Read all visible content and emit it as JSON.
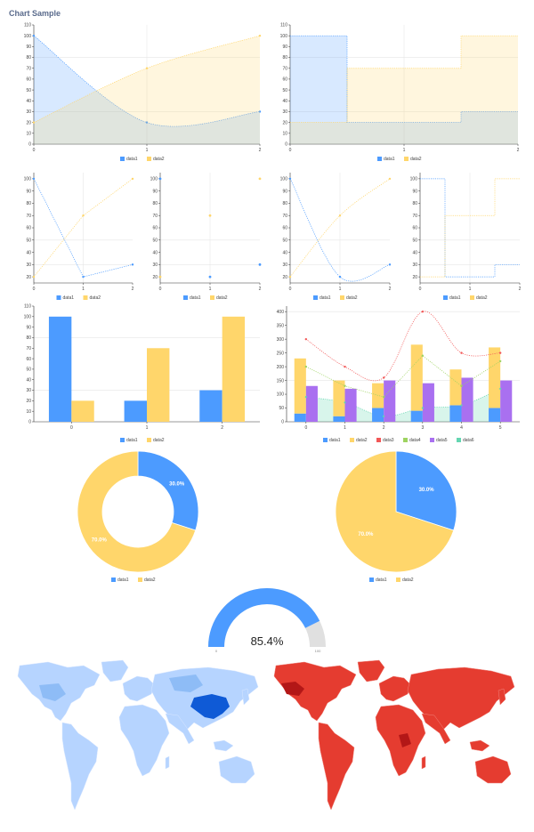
{
  "page": {
    "title": "Chart Sample"
  },
  "colors": {
    "data1": "#4c9bff",
    "data2": "#ffd66b",
    "data3": "#f25757",
    "data4": "#9ed361",
    "data5": "#a970f0",
    "data6": "#64d6b1",
    "map_blue_light": "#b6d4ff",
    "map_blue_mid": "#8ebcf6",
    "map_blue_dark": "#0f5ad6",
    "map_red": "#e53c30",
    "map_red_dark": "#b31717"
  },
  "chart_data": [
    {
      "id": "area-spline",
      "type": "area",
      "x": [
        0,
        1,
        2
      ],
      "series": [
        {
          "name": "data1",
          "values": [
            100,
            20,
            30
          ],
          "smooth": true
        },
        {
          "name": "data2",
          "values": [
            20,
            70,
            100
          ],
          "smooth": true
        }
      ],
      "ylim": [
        0,
        110
      ],
      "yticks": [
        0,
        10,
        20,
        30,
        40,
        50,
        60,
        70,
        80,
        90,
        100,
        110
      ],
      "xticks": [
        "0",
        "1",
        "2"
      ],
      "grid": {
        "y_lines": [
          30,
          80
        ],
        "x_lines": [
          1
        ]
      },
      "legend": "bottom"
    },
    {
      "id": "area-step",
      "type": "area",
      "x": [
        0,
        1,
        2
      ],
      "series": [
        {
          "name": "data1",
          "values": [
            100,
            20,
            30
          ],
          "step": true
        },
        {
          "name": "data2",
          "values": [
            20,
            70,
            100
          ],
          "step": true
        }
      ],
      "ylim": [
        0,
        110
      ],
      "yticks": [
        0,
        10,
        20,
        30,
        40,
        50,
        60,
        70,
        80,
        90,
        100,
        110
      ],
      "xticks": [
        "0",
        "1",
        "2"
      ],
      "grid": {
        "y_lines": [
          30,
          80
        ],
        "x_lines": [
          1
        ]
      },
      "legend": "bottom"
    },
    {
      "id": "line",
      "type": "line",
      "x": [
        0,
        1,
        2
      ],
      "series": [
        {
          "name": "data1",
          "values": [
            100,
            20,
            30
          ]
        },
        {
          "name": "data2",
          "values": [
            20,
            70,
            100
          ]
        }
      ],
      "ylim": [
        15,
        105
      ],
      "yticks": [
        20,
        30,
        40,
        50,
        60,
        70,
        80,
        90,
        100
      ],
      "xticks": [
        "0",
        "1",
        "2"
      ],
      "grid": {
        "y_lines": [
          30,
          50
        ],
        "x_lines": [
          1
        ]
      },
      "legend": "bottom"
    },
    {
      "id": "scatter",
      "type": "scatter",
      "x": [
        0,
        1,
        2
      ],
      "series": [
        {
          "name": "data1",
          "values": [
            100,
            20,
            30
          ]
        },
        {
          "name": "data2",
          "values": [
            20,
            70,
            100
          ]
        }
      ],
      "ylim": [
        15,
        105
      ],
      "yticks": [
        20,
        30,
        40,
        50,
        60,
        70,
        80,
        90,
        100
      ],
      "xticks": [
        "0",
        "1",
        "2"
      ],
      "grid": {
        "y_lines": [
          30,
          50
        ],
        "x_lines": [
          1
        ]
      },
      "legend": "bottom"
    },
    {
      "id": "spline",
      "type": "line",
      "x": [
        0,
        1,
        2
      ],
      "series": [
        {
          "name": "data1",
          "values": [
            100,
            20,
            30
          ],
          "smooth": true
        },
        {
          "name": "data2",
          "values": [
            20,
            70,
            100
          ],
          "smooth": true
        }
      ],
      "ylim": [
        15,
        105
      ],
      "yticks": [
        20,
        30,
        40,
        50,
        60,
        70,
        80,
        90,
        100
      ],
      "xticks": [
        "0",
        "1",
        "2"
      ],
      "grid": {
        "y_lines": [
          30,
          50
        ],
        "x_lines": [
          1
        ]
      },
      "legend": "bottom"
    },
    {
      "id": "step",
      "type": "line",
      "x": [
        0,
        1,
        2
      ],
      "series": [
        {
          "name": "data1",
          "values": [
            100,
            20,
            30
          ],
          "step": true
        },
        {
          "name": "data2",
          "values": [
            20,
            70,
            100
          ],
          "step": true
        }
      ],
      "ylim": [
        15,
        105
      ],
      "yticks": [
        20,
        30,
        40,
        50,
        60,
        70,
        80,
        90,
        100
      ],
      "xticks": [
        "0",
        "1",
        "2"
      ],
      "grid": {
        "y_lines": [
          30,
          50
        ],
        "x_lines": [
          1
        ]
      },
      "legend": "bottom"
    },
    {
      "id": "bar",
      "type": "bar",
      "categories": [
        "0",
        "1",
        "2"
      ],
      "series": [
        {
          "name": "data1",
          "values": [
            100,
            20,
            30
          ]
        },
        {
          "name": "data2",
          "values": [
            20,
            70,
            100
          ]
        }
      ],
      "ylim": [
        0,
        110
      ],
      "yticks": [
        0,
        10,
        20,
        30,
        40,
        50,
        60,
        70,
        80,
        90,
        100,
        110
      ],
      "grid": {
        "y_lines": [
          30,
          80
        ]
      },
      "legend": "bottom"
    },
    {
      "id": "combination",
      "type": "bar",
      "categories": [
        "0",
        "1",
        "2",
        "3",
        "4",
        "5"
      ],
      "series": [
        {
          "name": "data1",
          "kind": "bar",
          "stack": "a",
          "values": [
            30,
            20,
            50,
            40,
            60,
            50
          ]
        },
        {
          "name": "data2",
          "kind": "bar",
          "stack": "a",
          "values": [
            200,
            130,
            90,
            240,
            130,
            220
          ]
        },
        {
          "name": "data3",
          "kind": "spline",
          "values": [
            300,
            200,
            160,
            400,
            250,
            250
          ]
        },
        {
          "name": "data4",
          "kind": "line",
          "values": [
            200,
            130,
            90,
            240,
            130,
            220
          ]
        },
        {
          "name": "data5",
          "kind": "bar",
          "values": [
            130,
            120,
            150,
            140,
            160,
            150
          ]
        },
        {
          "name": "data6",
          "kind": "area",
          "values": [
            90,
            70,
            20,
            50,
            60,
            120
          ]
        }
      ],
      "ylim": [
        0,
        420
      ],
      "yticks": [
        0,
        50,
        100,
        150,
        200,
        250,
        300,
        350,
        400
      ],
      "grid": {
        "y_lines": [
          150,
          400
        ]
      },
      "legend": "bottom"
    },
    {
      "id": "donut",
      "type": "pie",
      "variant": "donut",
      "series": [
        {
          "name": "data1",
          "value": 30,
          "label": "30.0%"
        },
        {
          "name": "data2",
          "value": 70,
          "label": "70.0%"
        }
      ],
      "legend": "bottom"
    },
    {
      "id": "pie",
      "type": "pie",
      "series": [
        {
          "name": "data1",
          "value": 30,
          "label": "30.0%"
        },
        {
          "name": "data2",
          "value": 70,
          "label": "70.0%"
        }
      ],
      "legend": "bottom"
    },
    {
      "id": "gauge",
      "type": "gauge",
      "value": 85.4,
      "value_label": "85.4%",
      "min_label": "0",
      "max_label": "100"
    }
  ],
  "maps": {
    "left": {
      "color_scheme": "blue",
      "highlighted": "China"
    },
    "right": {
      "color_scheme": "red"
    }
  }
}
